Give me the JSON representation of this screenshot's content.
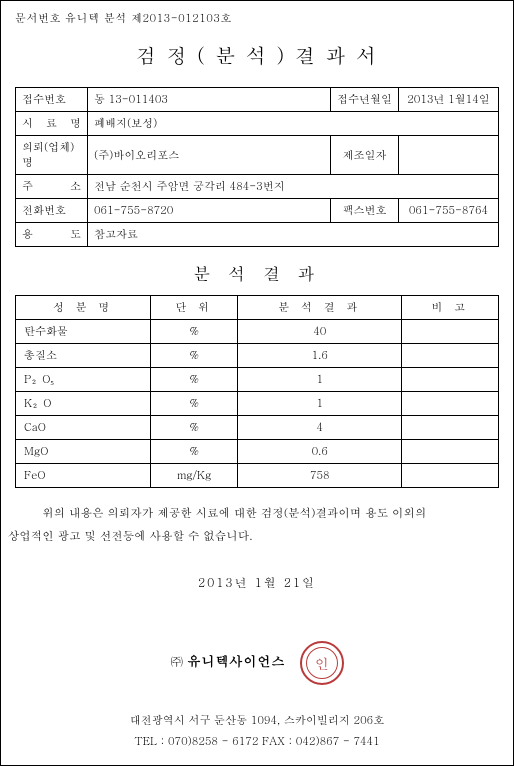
{
  "doc_number": "문서번호 유니텍 분석 제2013-012103호",
  "title": "검 정 ( 분 석 ) 결 과 서",
  "info": {
    "labels": {
      "receipt_no": "접수번호",
      "receipt_date": "접수년월일",
      "sample_name": "시 료 명",
      "client": "의뢰(업체)명",
      "mfg_date": "제조일자",
      "address": "주 소",
      "phone": "전화번호",
      "fax": "팩스번호",
      "use": "용 도"
    },
    "receipt_no": "동 13-011403",
    "receipt_date": "2013년 1월14일",
    "sample_name": "폐배지(보성)",
    "client": "(주)바이오리포스",
    "mfg_date": "",
    "address": "전남 순천시 주암면 궁각리 484-3번지",
    "phone": "061-755-8720",
    "fax": "061-755-8764",
    "use": "참고자료"
  },
  "section_title": "분 석 결 과",
  "analysis": {
    "headers": {
      "name": "성 분 명",
      "unit": "단 위",
      "result": "분 석 결 과",
      "note": "비 고"
    },
    "rows": [
      {
        "name": "탄수화물",
        "unit": "%",
        "result": "40",
        "note": ""
      },
      {
        "name": "총질소",
        "unit": "%",
        "result": "1.6",
        "note": ""
      },
      {
        "name": "P₂O₅",
        "unit": "%",
        "result": "1",
        "note": ""
      },
      {
        "name": "K₂O",
        "unit": "%",
        "result": "1",
        "note": ""
      },
      {
        "name": "CaO",
        "unit": "%",
        "result": "4",
        "note": ""
      },
      {
        "name": "MgO",
        "unit": "%",
        "result": "0.6",
        "note": ""
      },
      {
        "name": "FeO",
        "unit": "mg/Kg",
        "result": "758",
        "note": ""
      }
    ]
  },
  "note_line1": "위의 내용은 의뢰자가 제공한 시료에 대한 검정(분석)결과이며 용도 이외의",
  "note_line2": "상업적인 광고 및 선전등에 사용할 수 없습니다.",
  "date": "2013년 1월 21일",
  "company_prefix": "㈜",
  "company": "유니텍사이언스",
  "seal_text": "인",
  "address": "대전광역시 서구 둔산동 1094, 스카이빌리지 206호",
  "tel": "TEL : 070)8258 - 6172 FAX : 042)867 - 7441"
}
